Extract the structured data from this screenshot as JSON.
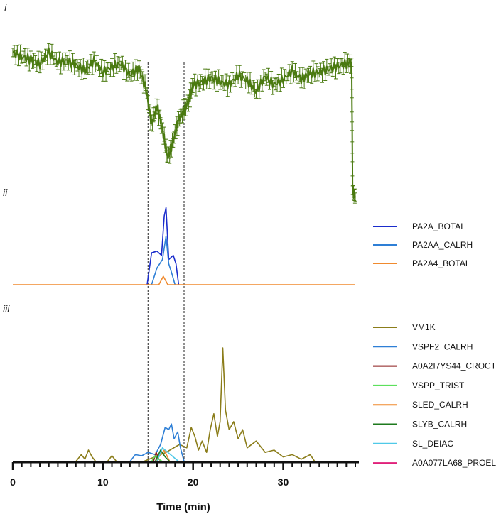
{
  "chart_data": {
    "type": "line",
    "xlabel": "Time (min)",
    "x_ticks": [
      0,
      10,
      20,
      30
    ],
    "xlim": [
      0,
      38
    ],
    "guide_lines_x": [
      15.0,
      19.0
    ],
    "panels": [
      {
        "label": "i",
        "series": [
          {
            "color": "#4a7a10",
            "error_bars": true,
            "x": [
              0,
              1,
              2,
              3,
              4,
              5,
              6,
              7,
              8,
              9,
              10,
              11,
              12,
              13,
              14,
              14.8,
              15.4,
              16,
              16.6,
              17.2,
              17.8,
              18.4,
              19,
              19.6,
              20,
              21,
              22,
              23,
              24,
              25,
              26,
              27,
              28,
              29,
              30,
              31,
              32,
              33,
              34,
              35,
              36,
              37,
              37.6,
              37.7,
              38
            ],
            "y": [
              0.93,
              0.9,
              0.88,
              0.85,
              0.93,
              0.86,
              0.87,
              0.84,
              0.8,
              0.87,
              0.79,
              0.83,
              0.85,
              0.77,
              0.82,
              0.66,
              0.42,
              0.55,
              0.38,
              0.18,
              0.3,
              0.45,
              0.52,
              0.6,
              0.7,
              0.72,
              0.75,
              0.72,
              0.7,
              0.77,
              0.73,
              0.65,
              0.76,
              0.7,
              0.74,
              0.8,
              0.74,
              0.78,
              0.79,
              0.81,
              0.83,
              0.85,
              0.86,
              -0.05,
              -0.1
            ]
          }
        ]
      },
      {
        "label": "ii",
        "series": [
          {
            "name": "PA2A_BOTAL",
            "color": "#1a2ccc",
            "x": [
              14.9,
              15.4,
              16.0,
              16.5,
              16.8,
              17.0,
              17.3,
              17.8,
              18.1,
              18.4
            ],
            "y": [
              0,
              0.38,
              0.4,
              0.35,
              0.82,
              0.92,
              0.3,
              0.35,
              0.25,
              0
            ]
          },
          {
            "name": "PA2AA_CALRH",
            "color": "#2e7fd6",
            "x": [
              15.4,
              16.0,
              16.6,
              17.0,
              17.3,
              17.6,
              18.0
            ],
            "y": [
              0,
              0.2,
              0.3,
              0.58,
              0.25,
              0.15,
              0
            ]
          },
          {
            "name": "PA2A4_BOTAL",
            "color": "#f08a2e",
            "x": [
              0,
              16.2,
              16.7,
              17.2,
              38
            ],
            "y": [
              0,
              0,
              0.1,
              0,
              0
            ]
          }
        ]
      },
      {
        "label": "iii",
        "series": [
          {
            "name": "VM1K",
            "color": "#8b7d1a",
            "x": [
              0,
              7.0,
              7.6,
              8.0,
              8.4,
              8.8,
              9.2,
              10.5,
              11.0,
              11.5,
              14.5,
              17.0,
              18.5,
              19.3,
              19.8,
              20.2,
              20.6,
              21.0,
              21.5,
              21.9,
              22.3,
              22.7,
              23.0,
              23.3,
              23.6,
              24.0,
              24.5,
              25.0,
              25.5,
              26.0,
              27.0,
              28.0,
              29.0,
              30.0,
              31.0,
              32.0,
              33.0,
              33.5,
              38
            ],
            "y": [
              0,
              0,
              0.06,
              0.02,
              0.1,
              0.04,
              0,
              0,
              0.05,
              0,
              0,
              0.08,
              0.15,
              0.12,
              0.3,
              0.22,
              0.1,
              0.18,
              0.08,
              0.28,
              0.42,
              0.22,
              0.35,
              1.0,
              0.45,
              0.28,
              0.35,
              0.2,
              0.28,
              0.12,
              0.18,
              0.08,
              0.1,
              0.04,
              0.06,
              0.02,
              0.06,
              0,
              0
            ]
          },
          {
            "name": "VSPF2_CALRH",
            "color": "#2e7fd6",
            "x": [
              13.0,
              13.6,
              14.3,
              15.0,
              15.8,
              16.4,
              16.9,
              17.3,
              17.6,
              17.9,
              18.3,
              18.6,
              19.0
            ],
            "y": [
              0,
              0.06,
              0.05,
              0.08,
              0.06,
              0.15,
              0.3,
              0.28,
              0.33,
              0.2,
              0.26,
              0.12,
              0
            ]
          },
          {
            "name": "A0A2I7YS44_CROCT",
            "color": "#8b1a1a",
            "x": [
              15.6,
              15.9,
              16.2,
              16.5
            ],
            "y": [
              0,
              0.08,
              0.02,
              0
            ]
          },
          {
            "name": "VSPP_TRIST",
            "color": "#5ce05c",
            "x": [
              15.4,
              15.8,
              16.2,
              16.6
            ],
            "y": [
              0,
              0.05,
              0.02,
              0
            ]
          },
          {
            "name": "SLED_CALRH",
            "color": "#f08a2e",
            "x": [
              0,
              15.8,
              16.4,
              16.8,
              17.4,
              38
            ],
            "y": [
              0,
              0,
              0.06,
              0.1,
              0,
              0
            ]
          },
          {
            "name": "SLYB_CALRH",
            "color": "#1e7a1e",
            "x": [
              15.8,
              16.4,
              16.9,
              17.4
            ],
            "y": [
              0,
              0.1,
              0.04,
              0
            ]
          },
          {
            "name": "SL_DEIAC",
            "color": "#4fc9e8",
            "x": [
              16.0,
              16.6,
              17.2,
              17.8,
              18.4
            ],
            "y": [
              0,
              0.12,
              0.08,
              0.04,
              0
            ]
          },
          {
            "name": "A0A077LA68_PROEL",
            "color": "#e0207a",
            "x": [
              0,
              38
            ],
            "y": [
              0,
              0
            ]
          }
        ]
      }
    ]
  }
}
